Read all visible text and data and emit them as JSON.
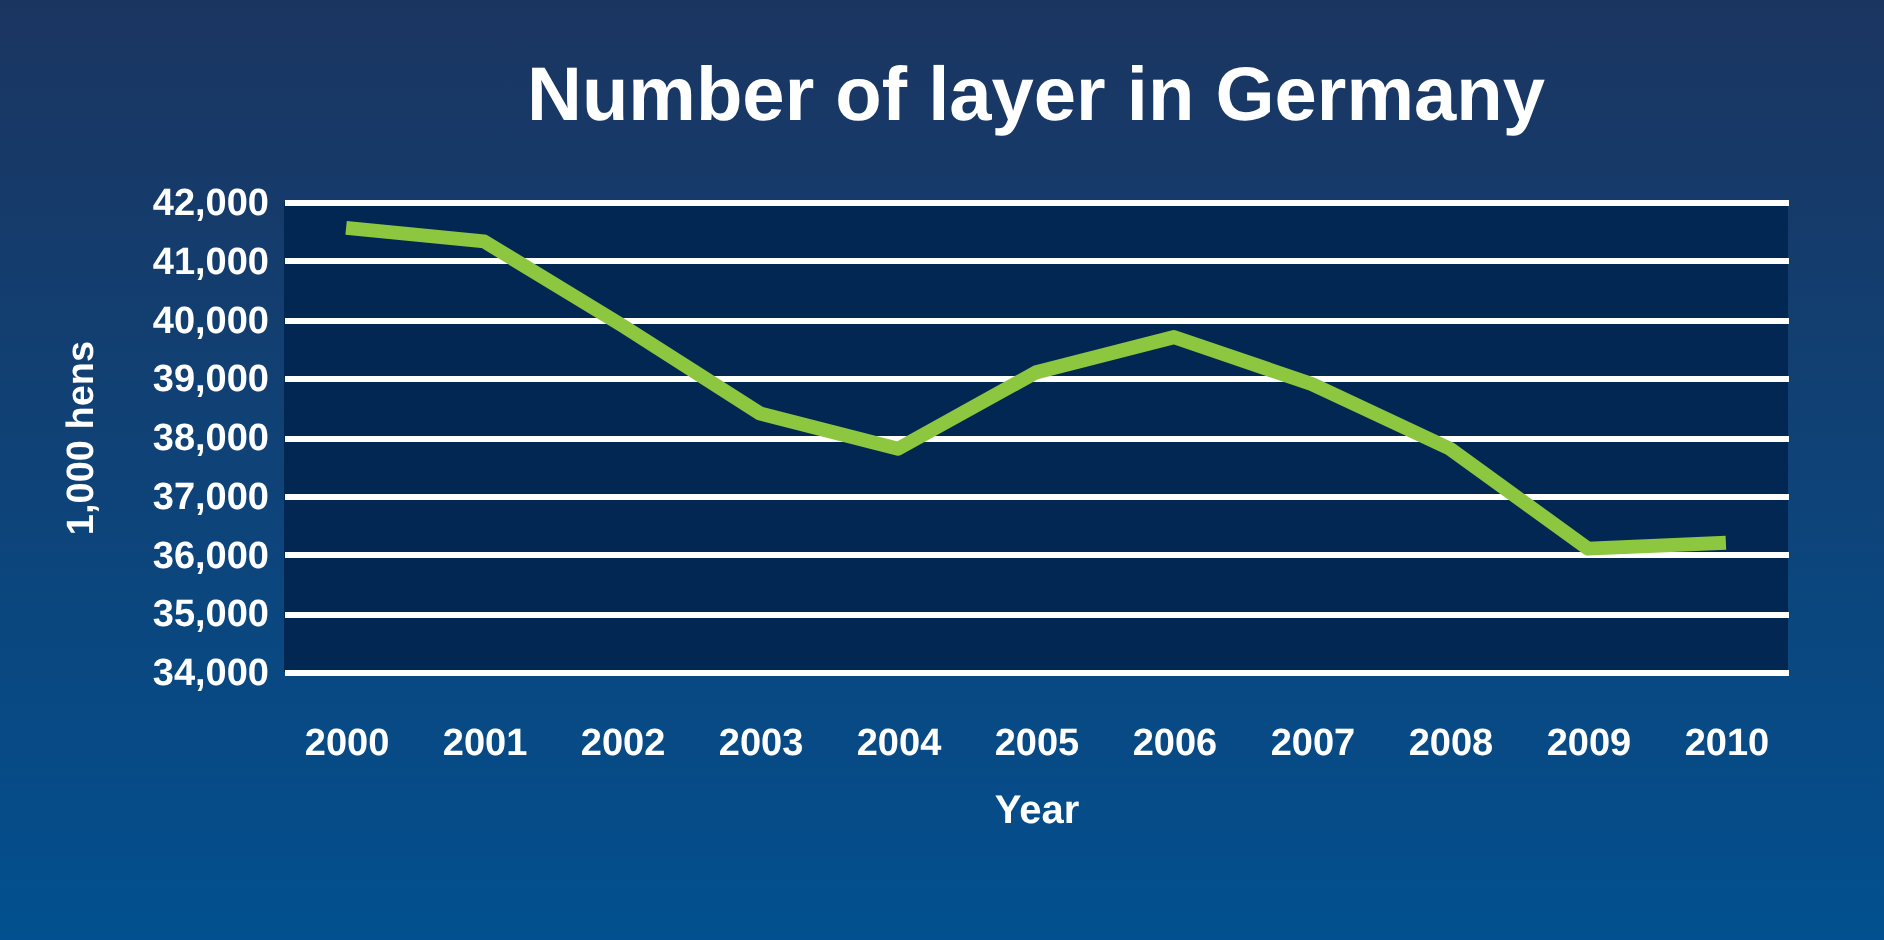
{
  "chart_data": {
    "type": "line",
    "title": "Number of layer in Germany",
    "xlabel": "Year",
    "ylabel": "1,000 hens",
    "categories": [
      "2000",
      "2001",
      "2002",
      "2003",
      "2004",
      "2005",
      "2006",
      "2007",
      "2008",
      "2009",
      "2010"
    ],
    "series": [
      {
        "color": "#8dc63f",
        "values": [
          41560,
          41330,
          39900,
          38400,
          37800,
          39100,
          39700,
          38900,
          37800,
          36100,
          36200
        ]
      }
    ],
    "ylim": [
      34000,
      42000
    ],
    "yticks": [
      {
        "value": 34000,
        "label": "34,000"
      },
      {
        "value": 35000,
        "label": "35,000"
      },
      {
        "value": 36000,
        "label": "36,000"
      },
      {
        "value": 37000,
        "label": "37,000"
      },
      {
        "value": 38000,
        "label": "38,000"
      },
      {
        "value": 39000,
        "label": "39,000"
      },
      {
        "value": 40000,
        "label": "40,000"
      },
      {
        "value": 41000,
        "label": "41,000"
      },
      {
        "value": 42000,
        "label": "42,000"
      }
    ],
    "grid": "y",
    "marker": "none",
    "line_style": "solid"
  }
}
